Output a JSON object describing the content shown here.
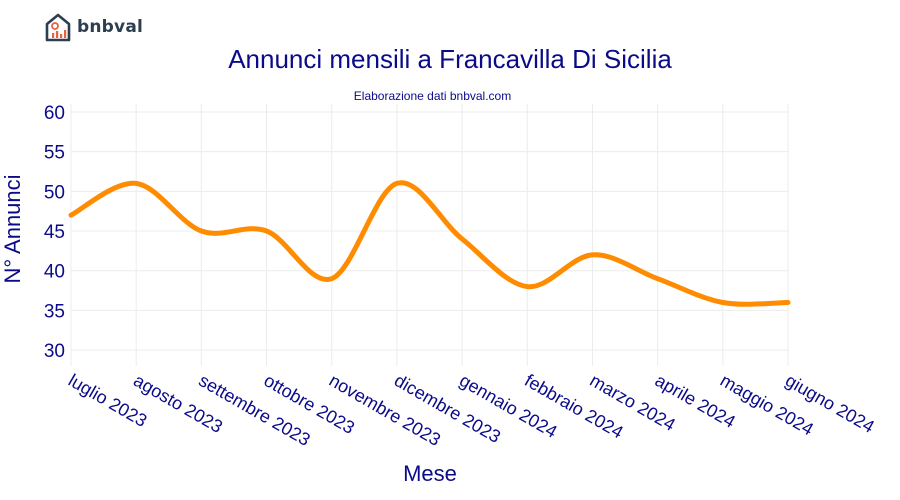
{
  "brand": {
    "name": "bnbval"
  },
  "chart_data": {
    "type": "line",
    "title": "Annunci mensili a Francavilla Di Sicilia",
    "subtitle": "Elaborazione dati bnbval.com",
    "xlabel": "Mese",
    "ylabel": "N° Annunci",
    "categories": [
      "luglio 2023",
      "agosto 2023",
      "settembre 2023",
      "ottobre 2023",
      "novembre 2023",
      "dicembre 2023",
      "gennaio 2024",
      "febbraio 2024",
      "marzo 2024",
      "aprile 2024",
      "maggio 2024",
      "giugno 2024"
    ],
    "series": [
      {
        "values": [
          47,
          51,
          45,
          45,
          39,
          51,
          44,
          38,
          42,
          39,
          36,
          36
        ]
      }
    ],
    "ylim": [
      28,
      61
    ],
    "yticks": [
      30,
      35,
      40,
      45,
      50,
      55,
      60
    ],
    "grid": true,
    "line_color": "#ff8c00",
    "text_color": "#0b0b8a",
    "grid_color": "#ececec"
  }
}
